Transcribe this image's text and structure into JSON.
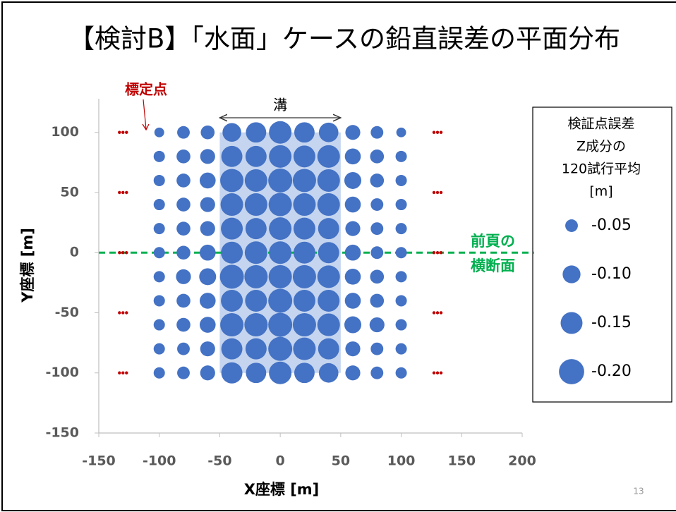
{
  "chart_data": {
    "type": "scatter",
    "title": "【検討B】「水面」ケースの鉛直誤差の平面分布",
    "xlabel": "X座標 [m]",
    "ylabel": "Y座標 [m]",
    "xlim": [
      -150,
      200
    ],
    "ylim": [
      -150,
      128
    ],
    "xticks": [
      -150,
      -100,
      -50,
      0,
      50,
      100,
      150,
      200
    ],
    "yticks": [
      -150,
      -100,
      -50,
      0,
      50,
      100
    ],
    "series": [
      {
        "color": "#4472c4",
        "x": [
          -100,
          -80,
          -60,
          -40,
          -20,
          0,
          20,
          40,
          60,
          80,
          100,
          -100,
          -80,
          -60,
          -40,
          -20,
          0,
          20,
          40,
          60,
          80,
          100,
          -100,
          -80,
          -60,
          -40,
          -20,
          0,
          20,
          40,
          60,
          80,
          100,
          -100,
          -80,
          -60,
          -40,
          -20,
          0,
          20,
          40,
          60,
          80,
          100,
          -100,
          -80,
          -60,
          -40,
          -20,
          0,
          20,
          40,
          60,
          80,
          100,
          -100,
          -80,
          -60,
          -40,
          -20,
          0,
          20,
          40,
          60,
          80,
          100,
          -100,
          -80,
          -60,
          -40,
          -20,
          0,
          20,
          40,
          60,
          80,
          100,
          -100,
          -80,
          -60,
          -40,
          -20,
          0,
          20,
          40,
          60,
          80,
          100,
          -100,
          -80,
          -60,
          -40,
          -20,
          0,
          20,
          40,
          60,
          80,
          100,
          -100,
          -80,
          -60,
          -40,
          -20,
          0,
          20,
          40,
          60,
          80,
          100,
          -100,
          -80,
          -60,
          -40,
          -20,
          0,
          20,
          40,
          60,
          80,
          100
        ],
        "y": [
          100,
          100,
          100,
          100,
          100,
          100,
          100,
          100,
          100,
          100,
          100,
          80,
          80,
          80,
          80,
          80,
          80,
          80,
          80,
          80,
          80,
          80,
          60,
          60,
          60,
          60,
          60,
          60,
          60,
          60,
          60,
          60,
          60,
          40,
          40,
          40,
          40,
          40,
          40,
          40,
          40,
          40,
          40,
          40,
          20,
          20,
          20,
          20,
          20,
          20,
          20,
          20,
          20,
          20,
          20,
          0,
          0,
          0,
          0,
          0,
          0,
          0,
          0,
          0,
          0,
          0,
          -20,
          -20,
          -20,
          -20,
          -20,
          -20,
          -20,
          -20,
          -20,
          -20,
          -20,
          -40,
          -40,
          -40,
          -40,
          -40,
          -40,
          -40,
          -40,
          -40,
          -40,
          -40,
          -60,
          -60,
          -60,
          -60,
          -60,
          -60,
          -60,
          -60,
          -60,
          -60,
          -60,
          -80,
          -80,
          -80,
          -80,
          -80,
          -80,
          -80,
          -80,
          -80,
          -80,
          -80,
          -100,
          -100,
          -100,
          -100,
          -100,
          -100,
          -100,
          -100,
          -100,
          -100,
          -100
        ],
        "sizes": [
          -0.03,
          -0.05,
          -0.06,
          -0.11,
          -0.13,
          -0.16,
          -0.13,
          -0.12,
          -0.07,
          -0.05,
          -0.03,
          -0.04,
          -0.06,
          -0.07,
          -0.14,
          -0.14,
          -0.16,
          -0.15,
          -0.16,
          -0.08,
          -0.06,
          -0.04,
          -0.04,
          -0.06,
          -0.08,
          -0.17,
          -0.16,
          -0.18,
          -0.17,
          -0.16,
          -0.09,
          -0.06,
          -0.04,
          -0.04,
          -0.06,
          -0.07,
          -0.16,
          -0.16,
          -0.17,
          -0.16,
          -0.16,
          -0.08,
          -0.05,
          -0.04,
          -0.04,
          -0.06,
          -0.07,
          -0.15,
          -0.14,
          -0.16,
          -0.15,
          -0.14,
          -0.07,
          -0.05,
          -0.04,
          -0.04,
          -0.06,
          -0.08,
          -0.15,
          -0.16,
          -0.16,
          -0.15,
          -0.14,
          -0.08,
          -0.05,
          -0.04,
          -0.04,
          -0.07,
          -0.09,
          -0.18,
          -0.17,
          -0.17,
          -0.17,
          -0.16,
          -0.08,
          -0.06,
          -0.04,
          -0.04,
          -0.06,
          -0.08,
          -0.15,
          -0.15,
          -0.18,
          -0.15,
          -0.15,
          -0.08,
          -0.06,
          -0.04,
          -0.04,
          -0.06,
          -0.08,
          -0.17,
          -0.17,
          -0.18,
          -0.17,
          -0.16,
          -0.09,
          -0.07,
          -0.04,
          -0.04,
          -0.05,
          -0.07,
          -0.14,
          -0.14,
          -0.18,
          -0.16,
          -0.14,
          -0.07,
          -0.05,
          -0.04,
          -0.04,
          -0.05,
          -0.07,
          -0.14,
          -0.13,
          -0.16,
          -0.13,
          -0.12,
          -0.07,
          -0.05,
          -0.04
        ]
      },
      {
        "name": "標定点",
        "color": "#c00000",
        "x": [
          -130,
          -130,
          -130,
          -130,
          -130,
          130,
          130,
          130,
          130,
          130
        ],
        "y": [
          100,
          50,
          0,
          -50,
          -100,
          100,
          50,
          0,
          -50,
          -100
        ]
      }
    ],
    "legend": {
      "title": [
        "検証点誤差",
        "Z成分の",
        "120試行平均",
        "[m]"
      ],
      "items": [
        -0.05,
        {
          "value": -0.1,
          "label": "-0.10"
        },
        -0.15,
        {
          "value": -0.2,
          "label": "-0.20"
        }
      ]
    },
    "trench": {
      "label": "溝",
      "xlim": [
        -50,
        50
      ],
      "ylim": [
        -100,
        100
      ],
      "color": "#c5d5ef"
    },
    "section": {
      "label": [
        "前頁の",
        "横断面"
      ],
      "y": 0,
      "color": "#00b050"
    },
    "page_number": "13"
  }
}
